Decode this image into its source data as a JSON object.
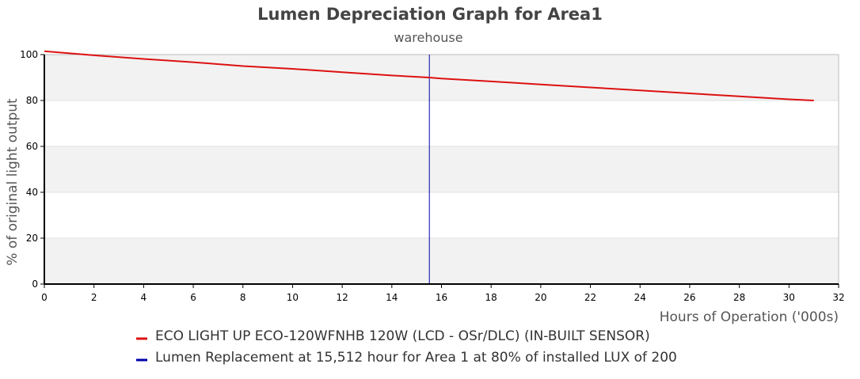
{
  "chart_data": {
    "type": "line",
    "title": "Lumen Depreciation Graph for Area1",
    "subtitle": "warehouse",
    "xlabel": "Hours of Operation ('000s)",
    "ylabel": "% of original light output",
    "xlim": [
      0,
      32
    ],
    "ylim": [
      0,
      100
    ],
    "xticks": [
      0,
      2,
      4,
      6,
      8,
      10,
      12,
      14,
      16,
      18,
      20,
      22,
      24,
      26,
      28,
      30,
      32
    ],
    "yticks": [
      0,
      20,
      40,
      60,
      80,
      100
    ],
    "grid": "horizontal bands",
    "legend_position": "bottom",
    "series": [
      {
        "name": "ECO LIGHT UP ECO-120WFNHB 120W (LCD - OSr/DLC) (IN-BUILT SENSOR)",
        "color": "#dd1111",
        "x": [
          0,
          2,
          4,
          6,
          8,
          10,
          12,
          14,
          15.512,
          16,
          18,
          20,
          22,
          24,
          26,
          28,
          30,
          31
        ],
        "y": [
          101.5,
          99.7,
          98.1,
          96.7,
          95.0,
          93.8,
          92.3,
          90.9,
          90.0,
          89.6,
          88.3,
          87.0,
          85.7,
          84.4,
          83.1,
          81.8,
          80.5,
          80.0
        ]
      }
    ],
    "markers": [
      {
        "name": "Lumen Replacement at 15,512 hour for Area 1 at 80% of installed LUX of 200",
        "color": "#0000aa",
        "x": 15.512
      }
    ]
  }
}
